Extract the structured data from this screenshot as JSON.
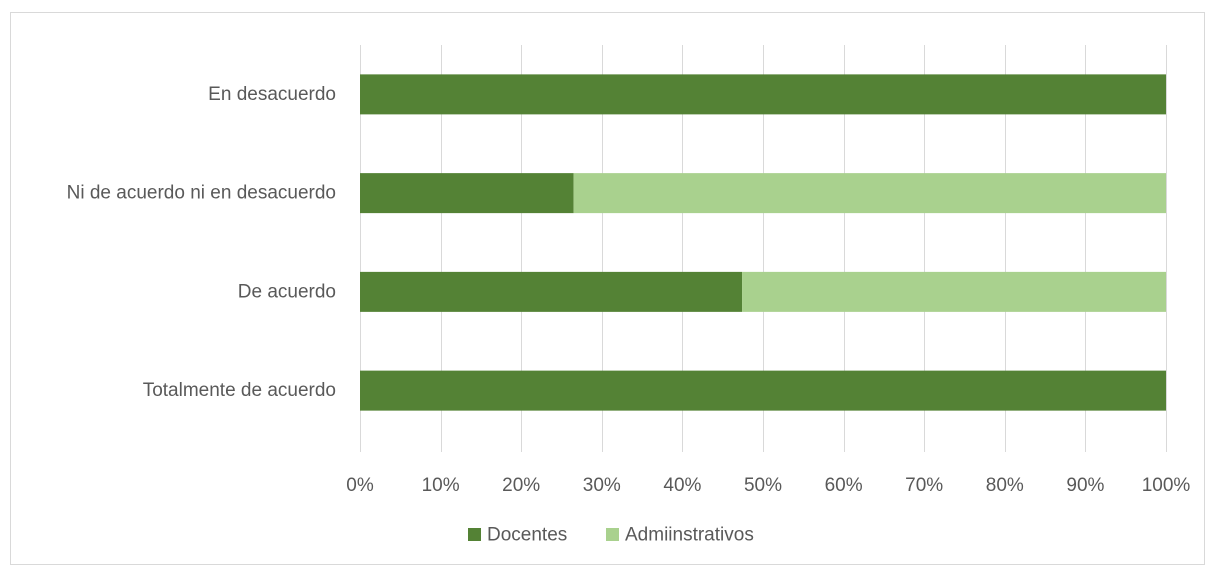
{
  "chart_data": {
    "type": "bar",
    "orientation": "horizontal",
    "stacked": "percent",
    "categories": [
      "En desacuerdo",
      "Ni de acuerdo ni en desacuerdo",
      "De acuerdo",
      "Totalmente de acuerdo"
    ],
    "series": [
      {
        "name": "Docentes",
        "values": [
          100,
          26.5,
          47.4,
          100
        ],
        "color": "#548235"
      },
      {
        "name": "Admiinstrativos",
        "values": [
          0,
          73.5,
          52.6,
          0
        ],
        "color": "#a9d18e"
      }
    ],
    "title": "",
    "xlabel": "",
    "ylabel": "",
    "xlim": [
      0,
      100
    ],
    "x_ticks": [
      "0%",
      "10%",
      "20%",
      "30%",
      "40%",
      "50%",
      "60%",
      "70%",
      "80%",
      "90%",
      "100%"
    ],
    "grid": true,
    "legend": "bottom-center",
    "colors": {
      "grid": "#d9d9d9",
      "text": "#595959",
      "border": "#d9d9d9"
    }
  }
}
